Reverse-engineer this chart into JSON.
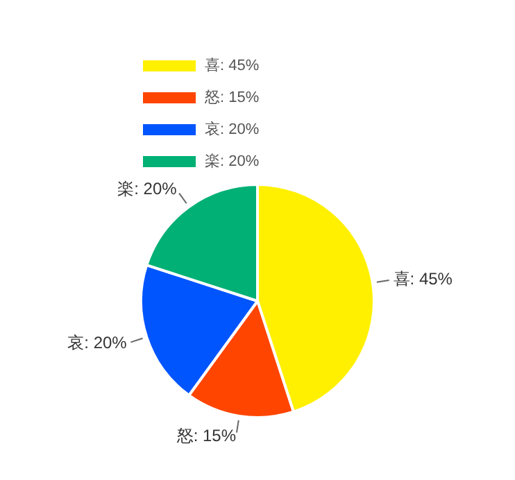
{
  "chart_data": {
    "type": "pie",
    "categories": [
      "喜",
      "怒",
      "哀",
      "楽"
    ],
    "values": [
      45,
      15,
      20,
      20
    ],
    "value_labels": [
      "45%",
      "15%",
      "20%",
      "20%"
    ],
    "colors": [
      "#fff000",
      "#ff4500",
      "#0055ff",
      "#00b074"
    ],
    "legend": "top left"
  }
}
